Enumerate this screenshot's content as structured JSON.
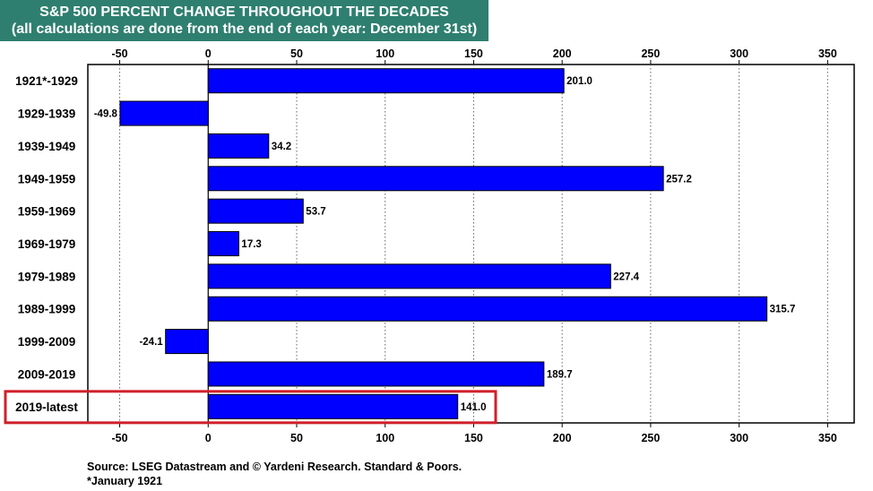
{
  "header": {
    "title": "S&P 500 PERCENT CHANGE THROUGHOUT THE DECADES",
    "subtitle": "(all calculations are done from the end of each year: December 31st)"
  },
  "chart_data": {
    "type": "bar",
    "orientation": "horizontal",
    "categories": [
      "1921*-1929",
      "1929-1939",
      "1939-1949",
      "1949-1959",
      "1959-1969",
      "1969-1979",
      "1979-1989",
      "1989-1999",
      "1999-2009",
      "2009-2019",
      "2019-latest"
    ],
    "values": [
      201.0,
      -49.8,
      34.2,
      257.2,
      53.7,
      17.3,
      227.4,
      315.7,
      -24.1,
      189.7,
      141.0
    ],
    "value_labels": [
      "201.0",
      "-49.8",
      "34.2",
      "257.2",
      "53.7",
      "17.3",
      "227.4",
      "315.7",
      "-24.1",
      "189.7",
      "141.0"
    ],
    "xlim": [
      -68,
      365
    ],
    "x_ticks": [
      -50,
      0,
      50,
      100,
      150,
      200,
      250,
      300,
      350
    ],
    "x_tick_labels": [
      "-50",
      "0",
      "50",
      "100",
      "150",
      "200",
      "250",
      "300",
      "350"
    ],
    "x_axis_position": "top and bottom",
    "grid": "vertical dotted",
    "bar_color": "#0000ff",
    "highlighted_category": "2019-latest",
    "highlight_color": "#d0202a",
    "title_bg_color": "#2e7f6f",
    "legend": "none"
  },
  "footer": {
    "source": "Source: LSEG Datastream and © Yardeni Research. Standard & Poors.",
    "footnote": "*January 1921"
  }
}
